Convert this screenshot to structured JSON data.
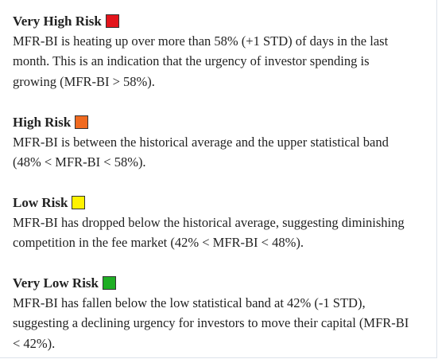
{
  "sections": [
    {
      "title": "Very High Risk",
      "description": "MFR-BI is heating up over more than 58% (+1 STD) of days in the last\nmonth. This is an indication that the urgency of investor spending is\ngrowing (MFR-BI > 58%)."
    },
    {
      "title": "High Risk",
      "description": "MFR-BI is between the historical average and the upper statistical band\n(48% < MFR-BI < 58%)."
    },
    {
      "title": "Low Risk",
      "description": "MFR-BI has dropped below the historical average, suggesting diminishing\ncompetition in the fee market (42% < MFR-BI < 48%)."
    },
    {
      "title": "Very Low Risk",
      "description": "MFR-BI has fallen below the low statistical band at 42% (-1 STD),\nsuggesting a declining urgency for investors to move their capital (MFR-BI\n< 42%)."
    }
  ]
}
